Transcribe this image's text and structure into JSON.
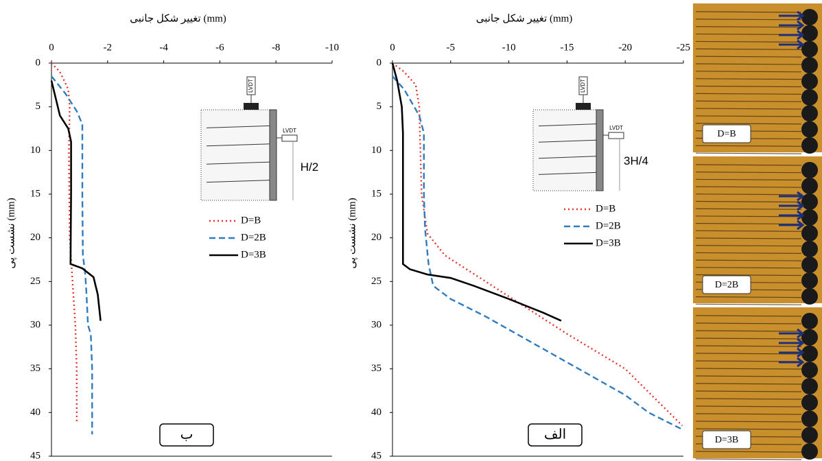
{
  "chart_data": [
    {
      "type": "line",
      "panel_label": "ب",
      "xlabel": "تغییر شکل جانبی (mm)",
      "ylabel": "نشست پی (mm)",
      "xlim": [
        0,
        -10
      ],
      "xticks": [
        0,
        -2,
        -4,
        -6,
        -8,
        -10
      ],
      "ylim": [
        0,
        45
      ],
      "yticks": [
        0,
        5,
        10,
        15,
        20,
        25,
        30,
        35,
        40,
        45
      ],
      "y_inverted": true,
      "grid": false,
      "legend": "right",
      "inset_labels": [
        "LVDT",
        "LVDT",
        "H/2"
      ],
      "series": [
        {
          "name": "D=B",
          "color": "#e8302a",
          "dash": "dotted",
          "x": [
            0,
            -0.3,
            -0.6,
            -0.65,
            -0.62,
            -0.65,
            -0.75,
            -0.85,
            -0.9,
            -0.9
          ],
          "values": [
            0,
            1,
            3,
            5,
            10,
            20,
            25,
            30,
            35,
            41.2
          ]
        },
        {
          "name": "D=2B",
          "color": "#2e7bc0",
          "dash": "dashed",
          "x": [
            0,
            -0.5,
            -0.9,
            -1.1,
            -1.1,
            -1.12,
            -1.2,
            -1.25,
            -1.3,
            -1.4,
            -1.45,
            -1.45
          ],
          "values": [
            1.5,
            3.5,
            5.5,
            7,
            15,
            22,
            24,
            26.5,
            30,
            31,
            35,
            42.5
          ]
        },
        {
          "name": "D=3B",
          "color": "#000000",
          "dash": "solid",
          "x": [
            0,
            -0.3,
            -0.6,
            -0.7,
            -0.7,
            -0.68,
            -1.1,
            -1.5,
            -1.65,
            -1.75
          ],
          "values": [
            2,
            6,
            7.5,
            9,
            15,
            23,
            23.5,
            24.5,
            26.5,
            29.5
          ]
        }
      ]
    },
    {
      "type": "line",
      "panel_label": "الف",
      "xlabel": "تغییر شکل جانبی (mm)",
      "ylabel": "نشست پی (mm)",
      "xlim": [
        0,
        -25
      ],
      "xticks": [
        0,
        -5,
        -10,
        -15,
        -20,
        -25
      ],
      "ylim": [
        0,
        45
      ],
      "yticks": [
        0,
        5,
        10,
        15,
        20,
        25,
        30,
        35,
        40,
        45
      ],
      "y_inverted": true,
      "grid": false,
      "legend": "right",
      "inset_labels": [
        "LVDT",
        "LVDT",
        "3H/4"
      ],
      "series": [
        {
          "name": "D=B",
          "color": "#e8302a",
          "dash": "dotted",
          "x": [
            0,
            -1,
            -2,
            -2.3,
            -2.4,
            -2.5,
            -3,
            -4.5,
            -8,
            -15,
            -20,
            -24.9
          ],
          "values": [
            0,
            1,
            2.5,
            5,
            10,
            15,
            19.5,
            22,
            25,
            31,
            35,
            41.5
          ]
        },
        {
          "name": "D=2B",
          "color": "#2e7bc0",
          "dash": "dashed",
          "x": [
            0,
            -1,
            -2.3,
            -2.7,
            -2.7,
            -2.8,
            -3.1,
            -3.5,
            -5,
            -8,
            -12,
            -16,
            -20,
            -22,
            -25
          ],
          "values": [
            1.5,
            3,
            6,
            8,
            15,
            19,
            23,
            25.5,
            27,
            29,
            32,
            35,
            38,
            40,
            42
          ]
        },
        {
          "name": "D=3B",
          "color": "#000000",
          "dash": "solid",
          "x": [
            0,
            -0.4,
            -0.8,
            -0.9,
            -0.9,
            -0.9,
            -0.9,
            -1.5,
            -3,
            -5,
            -7,
            -10,
            -13,
            -14.5
          ],
          "values": [
            0,
            2,
            5,
            8,
            15,
            20,
            23,
            23.6,
            24.2,
            24.6,
            25.5,
            27,
            28.6,
            29.5
          ]
        }
      ]
    }
  ],
  "photos": [
    {
      "label": "D=B"
    },
    {
      "label": "D=2B"
    },
    {
      "label": "D=3B"
    }
  ]
}
